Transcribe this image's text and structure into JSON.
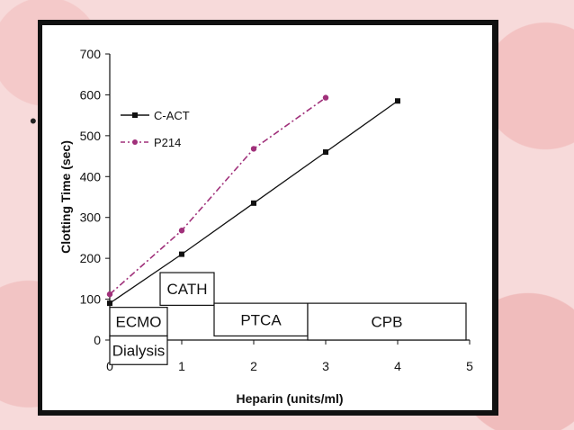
{
  "slide": {
    "bullet": "•"
  },
  "chart_data": {
    "type": "line",
    "xlabel": "Heparin (units/ml)",
    "ylabel": "Clotting Time (sec)",
    "xlim": [
      0,
      5
    ],
    "ylim": [
      0,
      700
    ],
    "xticks": [
      "0",
      "1",
      "2",
      "3",
      "4",
      "5"
    ],
    "yticks": [
      "0",
      "100",
      "200",
      "300",
      "400",
      "500",
      "600",
      "700"
    ],
    "grid": false,
    "legend_position": "top-left",
    "series": [
      {
        "name": "C-ACT",
        "color": "#111111",
        "style": "solid",
        "marker": "square",
        "x": [
          0,
          1,
          2,
          3,
          4
        ],
        "y": [
          90,
          210,
          335,
          460,
          585
        ]
      },
      {
        "name": "P214",
        "color": "#a0307a",
        "style": "dash-dot",
        "marker": "circle",
        "x": [
          0,
          1,
          2,
          3
        ],
        "y": [
          112,
          268,
          468,
          593
        ]
      }
    ],
    "annotations": [
      {
        "label": "ECMO",
        "x0": 0.0,
        "x1": 0.8,
        "y0": 10,
        "y1": 80
      },
      {
        "label": "Dialysis",
        "x0": 0.0,
        "x1": 0.8,
        "y0": -60,
        "y1": 10
      },
      {
        "label": "CATH",
        "x0": 0.7,
        "x1": 1.45,
        "y0": 85,
        "y1": 165
      },
      {
        "label": "PTCA",
        "x0": 1.45,
        "x1": 2.75,
        "y0": 10,
        "y1": 90
      },
      {
        "label": "CPB",
        "x0": 2.75,
        "x1": 4.95,
        "y0": 0,
        "y1": 90
      }
    ]
  }
}
